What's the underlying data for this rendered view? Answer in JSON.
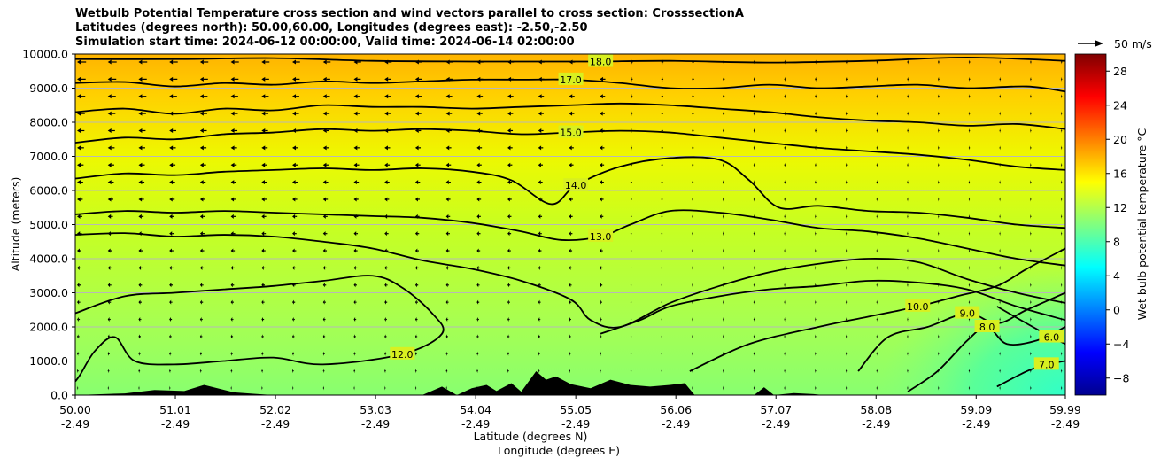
{
  "chart_data": {
    "type": "heatmap",
    "title_lines": [
      "Wetbulb Potential Temperature cross section and wind vectors parallel to cross section: CrosssectionA",
      "Latitudes (degrees north): 50.00,60.00, Longitudes (degrees east): -2.50,-2.50",
      "Simulation start time: 2024-06-12 00:00:00, Valid time: 2024-06-14 02:00:00"
    ],
    "ylabel": "Altitude (meters)",
    "xlabel_lat": "Latitude (degrees N)",
    "xlabel_lon": "Longitude (degrees E)",
    "ylim": [
      0,
      10000
    ],
    "y_ticks": [
      "0.0",
      "1000.0",
      "2000.0",
      "3000.0",
      "4000.0",
      "5000.0",
      "6000.0",
      "7000.0",
      "8000.0",
      "9000.0",
      "10000.0"
    ],
    "y_tick_values": [
      0,
      1000,
      2000,
      3000,
      4000,
      5000,
      6000,
      7000,
      8000,
      9000,
      10000
    ],
    "x_range": [
      50.0,
      59.99
    ],
    "x_ticks_lat": [
      "50.00",
      "51.01",
      "52.02",
      "53.03",
      "54.04",
      "55.05",
      "56.06",
      "57.07",
      "58.08",
      "59.09",
      "59.99"
    ],
    "x_ticks_lon": [
      "-2.49",
      "-2.49",
      "-2.49",
      "-2.49",
      "-2.49",
      "-2.49",
      "-2.49",
      "-2.49",
      "-2.49",
      "-2.49",
      "-2.49"
    ],
    "x_tick_values": [
      50.0,
      51.01,
      52.02,
      53.03,
      54.04,
      55.05,
      56.06,
      57.07,
      58.08,
      59.09,
      59.99
    ],
    "colorbar": {
      "label": "Wet bulb potential temperature °C",
      "range": [
        -10,
        30
      ],
      "ticks": [
        "−8",
        "−4",
        "0",
        "4",
        "8",
        "12",
        "16",
        "20",
        "24",
        "28"
      ],
      "tick_values": [
        -8,
        -4,
        0,
        4,
        8,
        12,
        16,
        20,
        24,
        28
      ]
    },
    "wind_key_label": "50 m/s",
    "contours": [
      {
        "level": 18,
        "label": "18.0",
        "points": [
          [
            50.0,
            9850
          ],
          [
            51.0,
            9850
          ],
          [
            52.0,
            9880
          ],
          [
            53.0,
            9800
          ],
          [
            54.0,
            9780
          ],
          [
            54.9,
            9780
          ],
          [
            55.3,
            9780
          ],
          [
            56.0,
            9800
          ],
          [
            57.0,
            9750
          ],
          [
            58.0,
            9800
          ],
          [
            59.0,
            9900
          ],
          [
            59.99,
            9800
          ]
        ]
      },
      {
        "level": 17,
        "label": "17.0",
        "points": [
          [
            50.0,
            9150
          ],
          [
            50.5,
            9180
          ],
          [
            51.0,
            9050
          ],
          [
            51.5,
            9150
          ],
          [
            52.0,
            9100
          ],
          [
            52.5,
            9200
          ],
          [
            53.0,
            9150
          ],
          [
            53.5,
            9200
          ],
          [
            54.0,
            9250
          ],
          [
            54.5,
            9250
          ],
          [
            55.0,
            9250
          ],
          [
            55.5,
            9150
          ],
          [
            56.0,
            9000
          ],
          [
            56.5,
            9000
          ],
          [
            57.0,
            9100
          ],
          [
            57.5,
            9000
          ],
          [
            58.0,
            9050
          ],
          [
            58.5,
            9100
          ],
          [
            59.0,
            9000
          ],
          [
            59.6,
            9050
          ],
          [
            59.99,
            8900
          ]
        ]
      },
      {
        "level": 16,
        "label": "",
        "points": [
          [
            50.0,
            8300
          ],
          [
            50.5,
            8400
          ],
          [
            51.0,
            8250
          ],
          [
            51.5,
            8400
          ],
          [
            52.0,
            8350
          ],
          [
            52.5,
            8500
          ],
          [
            53.0,
            8450
          ],
          [
            53.5,
            8450
          ],
          [
            54.0,
            8400
          ],
          [
            54.5,
            8450
          ],
          [
            55.0,
            8500
          ],
          [
            55.5,
            8550
          ],
          [
            56.0,
            8500
          ],
          [
            56.5,
            8400
          ],
          [
            57.0,
            8300
          ],
          [
            57.5,
            8150
          ],
          [
            58.0,
            8050
          ],
          [
            58.5,
            8000
          ],
          [
            59.0,
            7900
          ],
          [
            59.5,
            7950
          ],
          [
            59.99,
            7800
          ]
        ]
      },
      {
        "level": 15,
        "label": "15.0",
        "points": [
          [
            50.0,
            7400
          ],
          [
            50.5,
            7550
          ],
          [
            51.0,
            7500
          ],
          [
            51.5,
            7650
          ],
          [
            52.0,
            7700
          ],
          [
            52.5,
            7800
          ],
          [
            53.0,
            7750
          ],
          [
            53.5,
            7800
          ],
          [
            54.0,
            7750
          ],
          [
            54.5,
            7650
          ],
          [
            55.0,
            7700
          ],
          [
            55.5,
            7750
          ],
          [
            56.0,
            7700
          ],
          [
            56.5,
            7550
          ],
          [
            57.0,
            7400
          ],
          [
            57.5,
            7250
          ],
          [
            58.0,
            7150
          ],
          [
            58.5,
            7050
          ],
          [
            59.0,
            6900
          ],
          [
            59.5,
            6700
          ],
          [
            59.99,
            6600
          ]
        ]
      },
      {
        "level": 14,
        "label": "14.0",
        "points": [
          [
            50.0,
            6350
          ],
          [
            50.5,
            6500
          ],
          [
            51.0,
            6450
          ],
          [
            51.5,
            6550
          ],
          [
            52.0,
            6600
          ],
          [
            52.5,
            6650
          ],
          [
            53.0,
            6600
          ],
          [
            53.5,
            6650
          ],
          [
            54.0,
            6550
          ],
          [
            54.4,
            6300
          ],
          [
            54.8,
            5600
          ],
          [
            55.05,
            6150
          ],
          [
            55.5,
            6700
          ],
          [
            56.0,
            6950
          ],
          [
            56.5,
            6900
          ],
          [
            56.8,
            6300
          ],
          [
            57.1,
            5500
          ],
          [
            57.5,
            5550
          ],
          [
            58.0,
            5400
          ],
          [
            58.5,
            5350
          ],
          [
            59.0,
            5200
          ],
          [
            59.5,
            5000
          ],
          [
            59.99,
            4900
          ]
        ]
      },
      {
        "level": 13,
        "label": "13.0",
        "points": [
          [
            50.0,
            5300
          ],
          [
            50.5,
            5400
          ],
          [
            51.0,
            5350
          ],
          [
            51.5,
            5400
          ],
          [
            52.0,
            5350
          ],
          [
            52.5,
            5300
          ],
          [
            53.0,
            5250
          ],
          [
            53.5,
            5200
          ],
          [
            54.0,
            5050
          ],
          [
            54.5,
            4800
          ],
          [
            54.9,
            4550
          ],
          [
            55.3,
            4650
          ],
          [
            55.6,
            5000
          ],
          [
            56.0,
            5400
          ],
          [
            56.5,
            5350
          ],
          [
            57.0,
            5150
          ],
          [
            57.5,
            4900
          ],
          [
            58.0,
            4800
          ],
          [
            58.5,
            4600
          ],
          [
            59.0,
            4300
          ],
          [
            59.5,
            4000
          ],
          [
            59.99,
            3800
          ]
        ]
      },
      {
        "level": 12,
        "label": "",
        "points": [
          [
            50.0,
            4700
          ],
          [
            50.5,
            4750
          ],
          [
            51.0,
            4650
          ],
          [
            51.5,
            4700
          ],
          [
            52.0,
            4650
          ],
          [
            52.5,
            4500
          ],
          [
            53.0,
            4300
          ],
          [
            53.5,
            3950
          ],
          [
            54.0,
            3700
          ],
          [
            54.5,
            3350
          ],
          [
            55.0,
            2800
          ],
          [
            55.2,
            2200
          ],
          [
            55.5,
            2000
          ],
          [
            56.0,
            2700
          ],
          [
            56.5,
            3200
          ],
          [
            57.0,
            3600
          ],
          [
            57.5,
            3850
          ],
          [
            58.0,
            4000
          ],
          [
            58.5,
            3900
          ],
          [
            59.0,
            3400
          ],
          [
            59.5,
            3000
          ],
          [
            59.99,
            2700
          ]
        ]
      },
      {
        "level": 12,
        "label": "12.0",
        "points": [
          [
            50.0,
            2400
          ],
          [
            50.5,
            2900
          ],
          [
            51.0,
            3000
          ],
          [
            51.5,
            3100
          ],
          [
            52.0,
            3200
          ],
          [
            52.5,
            3350
          ],
          [
            53.0,
            3500
          ],
          [
            53.3,
            3150
          ],
          [
            53.6,
            2400
          ],
          [
            53.7,
            1800
          ],
          [
            53.3,
            1200
          ],
          [
            52.5,
            900
          ],
          [
            52.0,
            1100
          ],
          [
            51.5,
            1000
          ],
          [
            51.0,
            900
          ],
          [
            50.6,
            1000
          ],
          [
            50.4,
            1700
          ],
          [
            50.2,
            1300
          ],
          [
            50.05,
            600
          ],
          [
            50.0,
            400
          ]
        ]
      },
      {
        "level": 11,
        "label": "",
        "points": [
          [
            55.3,
            1800
          ],
          [
            55.7,
            2200
          ],
          [
            56.0,
            2600
          ],
          [
            56.5,
            2900
          ],
          [
            57.0,
            3100
          ],
          [
            57.5,
            3200
          ],
          [
            58.0,
            3350
          ],
          [
            58.5,
            3300
          ],
          [
            59.0,
            3100
          ],
          [
            59.5,
            2600
          ],
          [
            59.99,
            2200
          ]
        ]
      },
      {
        "level": 10,
        "label": "10.0",
        "points": [
          [
            56.2,
            700
          ],
          [
            56.8,
            1500
          ],
          [
            57.5,
            2000
          ],
          [
            58.0,
            2300
          ],
          [
            58.5,
            2600
          ],
          [
            58.9,
            2900
          ],
          [
            59.3,
            3200
          ],
          [
            59.6,
            3700
          ],
          [
            59.99,
            4300
          ]
        ]
      },
      {
        "level": 9,
        "label": "9.0",
        "points": [
          [
            57.9,
            700
          ],
          [
            58.2,
            1700
          ],
          [
            58.6,
            2000
          ],
          [
            59.0,
            2400
          ],
          [
            59.3,
            2100
          ],
          [
            59.6,
            2500
          ],
          [
            59.99,
            3000
          ]
        ]
      },
      {
        "level": 8,
        "label": "8.0",
        "points": [
          [
            58.4,
            100
          ],
          [
            58.7,
            700
          ],
          [
            59.0,
            1600
          ],
          [
            59.2,
            2000
          ],
          [
            59.4,
            1500
          ],
          [
            59.7,
            1600
          ],
          [
            59.99,
            2000
          ]
        ]
      },
      {
        "level": 7,
        "label": "7.0",
        "points": [
          [
            59.3,
            250
          ],
          [
            59.6,
            700
          ],
          [
            59.8,
            900
          ],
          [
            59.99,
            1000
          ]
        ]
      },
      {
        "level": 6,
        "label": "6.0",
        "points": [
          [
            59.3,
            2600
          ],
          [
            59.6,
            2100
          ],
          [
            59.85,
            1700
          ],
          [
            59.99,
            1500
          ]
        ]
      }
    ],
    "terrain": [
      [
        50.0,
        0
      ],
      [
        50.5,
        50
      ],
      [
        50.8,
        150
      ],
      [
        51.1,
        120
      ],
      [
        51.3,
        300
      ],
      [
        51.6,
        80
      ],
      [
        51.8,
        40
      ],
      [
        52.0,
        0
      ],
      [
        52.9,
        0
      ],
      [
        53.5,
        0
      ],
      [
        53.7,
        250
      ],
      [
        53.85,
        0
      ],
      [
        54.0,
        200
      ],
      [
        54.15,
        300
      ],
      [
        54.25,
        120
      ],
      [
        54.4,
        350
      ],
      [
        54.5,
        100
      ],
      [
        54.65,
        700
      ],
      [
        54.75,
        450
      ],
      [
        54.85,
        550
      ],
      [
        55.0,
        320
      ],
      [
        55.2,
        200
      ],
      [
        55.4,
        450
      ],
      [
        55.6,
        300
      ],
      [
        55.8,
        250
      ],
      [
        56.0,
        300
      ],
      [
        56.15,
        350
      ],
      [
        56.25,
        0
      ],
      [
        56.85,
        0
      ],
      [
        56.95,
        230
      ],
      [
        57.05,
        0
      ],
      [
        57.25,
        60
      ],
      [
        57.45,
        30
      ],
      [
        57.55,
        0
      ],
      [
        59.99,
        0
      ]
    ]
  }
}
